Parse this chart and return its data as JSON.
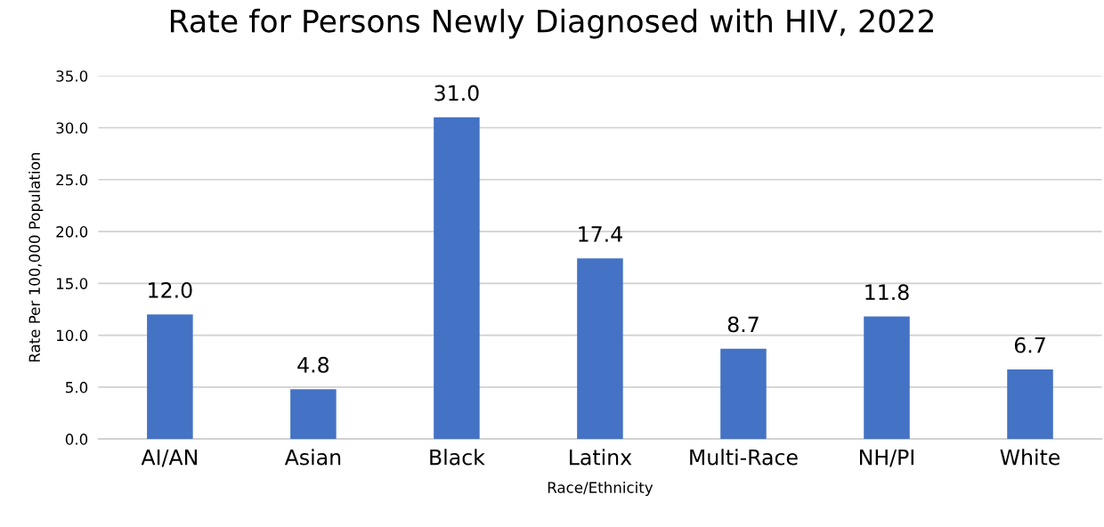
{
  "chart_data": {
    "type": "bar",
    "title": "Rate for Persons Newly Diagnosed with HIV, 2022",
    "xlabel": "Race/Ethnicity",
    "ylabel": "Rate Per 100,000 Population",
    "categories": [
      "AI/AN",
      "Asian",
      "Black",
      "Latinx",
      "Multi-Race",
      "NH/PI",
      "White"
    ],
    "values": [
      12.0,
      4.8,
      31.0,
      17.4,
      8.7,
      11.8,
      6.7
    ],
    "value_labels": [
      "12.0",
      "4.8",
      "31.0",
      "17.4",
      "8.7",
      "11.8",
      "6.7"
    ],
    "color": "#4472c4",
    "ylim": [
      0,
      35
    ],
    "yticks": [
      {
        "value": 0,
        "label": "0.0"
      },
      {
        "value": 5,
        "label": "5.0"
      },
      {
        "value": 10,
        "label": "10.0"
      },
      {
        "value": 15,
        "label": "15.0"
      },
      {
        "value": 20,
        "label": "20.0"
      },
      {
        "value": 25,
        "label": "25.0"
      },
      {
        "value": 30,
        "label": "30.0"
      },
      {
        "value": 35,
        "label": "35.0"
      }
    ],
    "grid": "y",
    "legend": false
  }
}
